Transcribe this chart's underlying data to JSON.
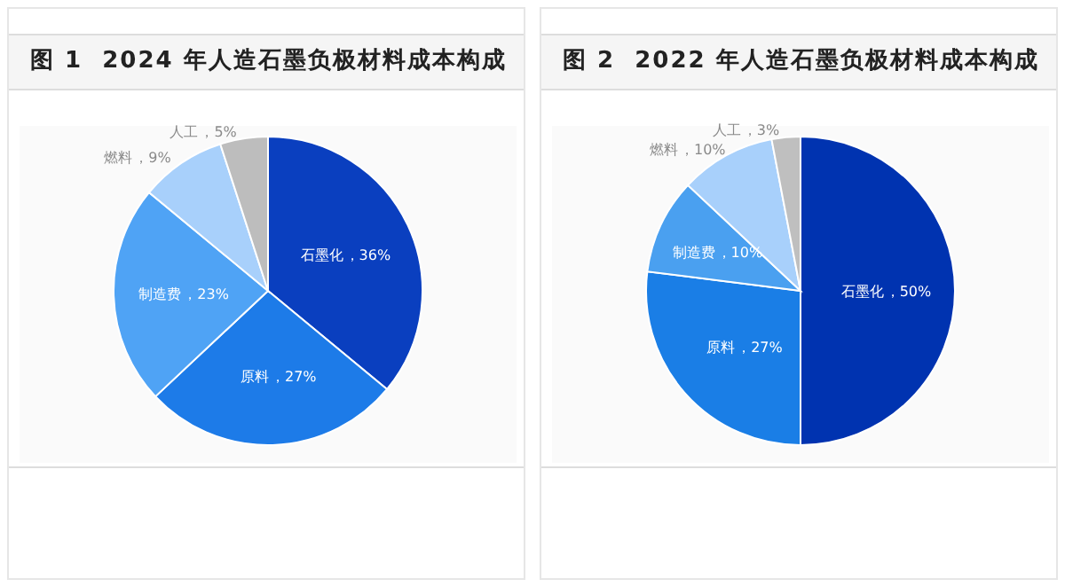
{
  "chart_data": [
    {
      "type": "pie",
      "title": "图 1  2024 年人造石墨负极材料成本构成",
      "categories": [
        "石墨化",
        "原料",
        "制造费",
        "燃料",
        "人工"
      ],
      "values": [
        36,
        27,
        23,
        9,
        5
      ],
      "colors": [
        "#0a3fbf",
        "#1d7be8",
        "#4fa3f5",
        "#a8d0fb",
        "#bdbdbd"
      ],
      "value_labels": [
        "，36%",
        "，27%",
        "，23%",
        "，9%",
        "，5%"
      ]
    },
    {
      "type": "pie",
      "title": "图 2  2022 年人造石墨负极材料成本构成",
      "categories": [
        "石墨化",
        "原料",
        "制造费",
        "燃料",
        "人工"
      ],
      "values": [
        50,
        27,
        10,
        10,
        3
      ],
      "colors": [
        "#0033b0",
        "#1a7ee6",
        "#4aa0f0",
        "#a8d0fb",
        "#bfbfbf"
      ],
      "value_labels": [
        "，50%",
        "，27%",
        "，10%",
        "，10%",
        "，3%"
      ]
    }
  ]
}
